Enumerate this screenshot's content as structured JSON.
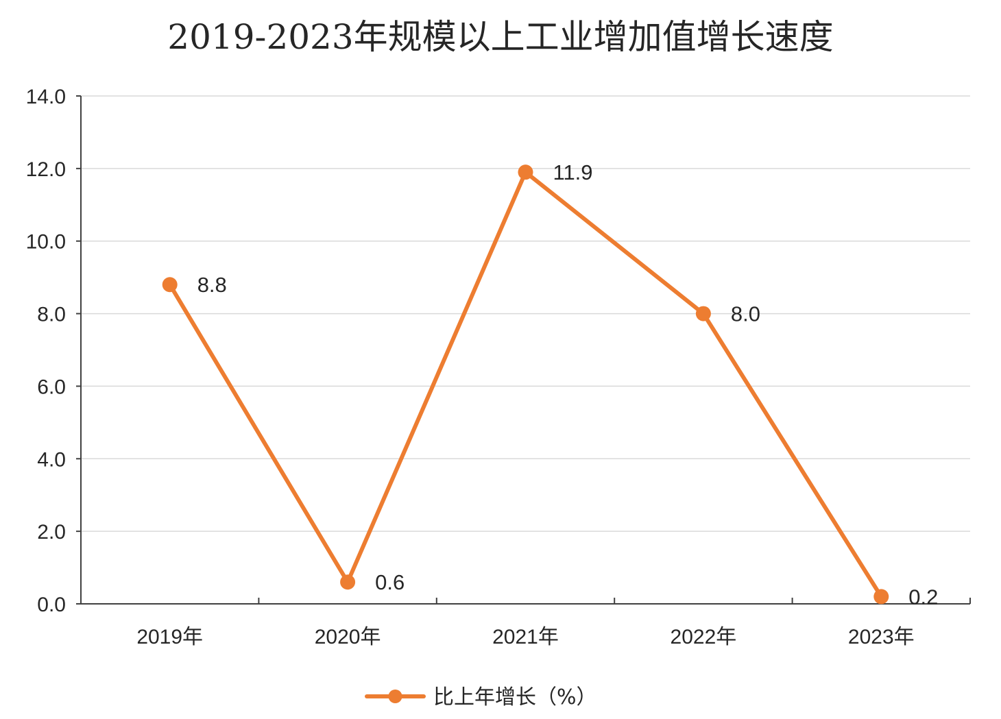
{
  "chart_data": {
    "type": "line",
    "title": "2019-2023年规模以上工业增加值增长速度",
    "categories": [
      "2019年",
      "2020年",
      "2021年",
      "2022年",
      "2023年"
    ],
    "series": [
      {
        "name": "比上年增长（%）",
        "values": [
          8.8,
          0.6,
          11.9,
          8.0,
          0.2
        ],
        "color": "#ED7D31"
      }
    ],
    "data_labels": [
      "8.8",
      "0.6",
      "11.9",
      "8.0",
      "0.2"
    ],
    "y_ticks": [
      "0.0",
      "2.0",
      "4.0",
      "6.0",
      "8.0",
      "10.0",
      "12.0",
      "14.0"
    ],
    "ylim": [
      0,
      14
    ],
    "grid": true,
    "legend_position": "bottom",
    "xlabel": "",
    "ylabel": ""
  }
}
